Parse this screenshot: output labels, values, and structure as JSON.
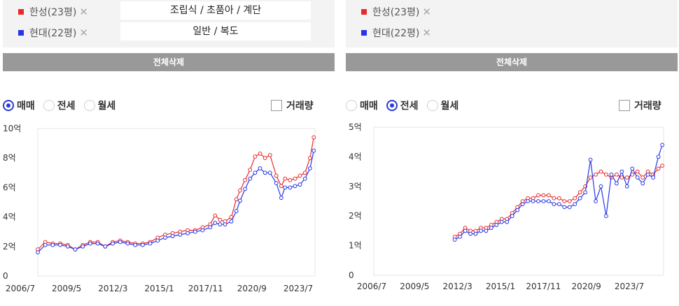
{
  "colors": {
    "hansung": "#e8292a",
    "hyundai": "#2636e6",
    "button": "#999999",
    "accent": "#2a3ad8"
  },
  "left": {
    "legend": [
      {
        "name": "한성(23평)",
        "color": "#e8292a",
        "desc": "조립식 / 초품아 / 계단"
      },
      {
        "name": "현대(22평)",
        "color": "#2636e6",
        "desc": "일반 / 복도"
      }
    ],
    "delete_all": "전체삭제",
    "radios": [
      {
        "label": "매매",
        "checked": true
      },
      {
        "label": "전세",
        "checked": false
      },
      {
        "label": "월세",
        "checked": false
      }
    ],
    "volume_label": "거래량",
    "volume_checked": false
  },
  "right": {
    "legend": [
      {
        "name": "한성(23평)",
        "color": "#e8292a"
      },
      {
        "name": "현대(22평)",
        "color": "#2636e6"
      }
    ],
    "delete_all": "전체삭제",
    "radios": [
      {
        "label": "매매",
        "checked": false
      },
      {
        "label": "전세",
        "checked": true
      },
      {
        "label": "월세",
        "checked": false
      }
    ],
    "volume_label": "거래량",
    "volume_checked": false
  },
  "chart_data": [
    {
      "type": "line",
      "title": "매매",
      "unit": "억",
      "ylim": [
        0,
        10
      ],
      "yticks": [
        "0",
        "2억",
        "4억",
        "6억",
        "8억",
        "10억"
      ],
      "xticks": [
        "2006/7",
        "2009/5",
        "2012/3",
        "2015/1",
        "2017/11",
        "2020/9",
        "2023/7"
      ],
      "xlim": [
        "2006-07",
        "2025-01"
      ],
      "grid": false,
      "series": [
        {
          "name": "한성(23평)",
          "color": "#e8292a",
          "points": [
            [
              "2006-07",
              1.8
            ],
            [
              "2007-01",
              2.3
            ],
            [
              "2007-07",
              2.2
            ],
            [
              "2008-01",
              2.2
            ],
            [
              "2008-07",
              2.1
            ],
            [
              "2009-01",
              1.8
            ],
            [
              "2009-07",
              2.1
            ],
            [
              "2010-01",
              2.3
            ],
            [
              "2010-07",
              2.3
            ],
            [
              "2011-01",
              2.0
            ],
            [
              "2011-07",
              2.3
            ],
            [
              "2012-01",
              2.4
            ],
            [
              "2012-07",
              2.3
            ],
            [
              "2013-01",
              2.2
            ],
            [
              "2013-07",
              2.2
            ],
            [
              "2014-01",
              2.3
            ],
            [
              "2014-07",
              2.6
            ],
            [
              "2015-01",
              2.8
            ],
            [
              "2015-07",
              2.9
            ],
            [
              "2016-01",
              3.0
            ],
            [
              "2016-07",
              3.1
            ],
            [
              "2017-01",
              3.1
            ],
            [
              "2017-07",
              3.3
            ],
            [
              "2018-01",
              3.5
            ],
            [
              "2018-05",
              4.1
            ],
            [
              "2018-09",
              3.8
            ],
            [
              "2019-01",
              3.7
            ],
            [
              "2019-06",
              4.0
            ],
            [
              "2019-10",
              5.2
            ],
            [
              "2020-01",
              5.8
            ],
            [
              "2020-05",
              6.5
            ],
            [
              "2020-09",
              7.2
            ],
            [
              "2021-01",
              8.1
            ],
            [
              "2021-05",
              8.3
            ],
            [
              "2021-09",
              8.0
            ],
            [
              "2022-01",
              8.2
            ],
            [
              "2022-06",
              6.8
            ],
            [
              "2022-10",
              6.1
            ],
            [
              "2023-01",
              6.6
            ],
            [
              "2023-05",
              6.5
            ],
            [
              "2023-09",
              6.6
            ],
            [
              "2024-01",
              6.8
            ],
            [
              "2024-05",
              7.0
            ],
            [
              "2024-09",
              8.0
            ],
            [
              "2024-12",
              9.4
            ]
          ]
        },
        {
          "name": "현대(22평)",
          "color": "#2636e6",
          "points": [
            [
              "2006-07",
              1.6
            ],
            [
              "2007-01",
              2.1
            ],
            [
              "2007-07",
              2.1
            ],
            [
              "2008-01",
              2.1
            ],
            [
              "2008-07",
              2.0
            ],
            [
              "2009-01",
              1.8
            ],
            [
              "2009-07",
              2.0
            ],
            [
              "2010-01",
              2.2
            ],
            [
              "2010-07",
              2.2
            ],
            [
              "2011-01",
              2.0
            ],
            [
              "2011-07",
              2.2
            ],
            [
              "2012-01",
              2.3
            ],
            [
              "2012-07",
              2.2
            ],
            [
              "2013-01",
              2.1
            ],
            [
              "2013-07",
              2.1
            ],
            [
              "2014-01",
              2.2
            ],
            [
              "2014-07",
              2.4
            ],
            [
              "2015-01",
              2.6
            ],
            [
              "2015-07",
              2.7
            ],
            [
              "2016-01",
              2.8
            ],
            [
              "2016-07",
              2.9
            ],
            [
              "2017-01",
              3.0
            ],
            [
              "2017-07",
              3.1
            ],
            [
              "2018-01",
              3.3
            ],
            [
              "2018-05",
              3.6
            ],
            [
              "2018-09",
              3.5
            ],
            [
              "2019-01",
              3.5
            ],
            [
              "2019-06",
              3.7
            ],
            [
              "2019-10",
              4.4
            ],
            [
              "2020-01",
              5.1
            ],
            [
              "2020-05",
              5.9
            ],
            [
              "2020-09",
              6.6
            ],
            [
              "2021-01",
              7.0
            ],
            [
              "2021-05",
              7.3
            ],
            [
              "2021-09",
              7.0
            ],
            [
              "2022-01",
              7.0
            ],
            [
              "2022-06",
              6.3
            ],
            [
              "2022-10",
              5.3
            ],
            [
              "2023-01",
              6.0
            ],
            [
              "2023-05",
              6.0
            ],
            [
              "2023-09",
              6.1
            ],
            [
              "2024-01",
              6.2
            ],
            [
              "2024-05",
              6.6
            ],
            [
              "2024-09",
              7.3
            ],
            [
              "2024-12",
              8.5
            ]
          ]
        }
      ]
    },
    {
      "type": "line",
      "title": "전세",
      "unit": "억",
      "ylim": [
        0,
        5
      ],
      "yticks": [
        "0",
        "1억",
        "2억",
        "3억",
        "4억",
        "5억"
      ],
      "xticks": [
        "2006/7",
        "2009/5",
        "2012/3",
        "2015/1",
        "2017/11",
        "2020/9",
        "2023/7"
      ],
      "xlim": [
        "2006-07",
        "2025-01"
      ],
      "grid": false,
      "series": [
        {
          "name": "한성(23평)",
          "color": "#e8292a",
          "points": [
            [
              "2011-09",
              1.3
            ],
            [
              "2012-01",
              1.4
            ],
            [
              "2012-05",
              1.6
            ],
            [
              "2012-09",
              1.5
            ],
            [
              "2013-01",
              1.5
            ],
            [
              "2013-05",
              1.6
            ],
            [
              "2013-09",
              1.6
            ],
            [
              "2014-01",
              1.7
            ],
            [
              "2014-05",
              1.8
            ],
            [
              "2014-09",
              1.9
            ],
            [
              "2015-01",
              1.9
            ],
            [
              "2015-05",
              2.1
            ],
            [
              "2015-09",
              2.3
            ],
            [
              "2016-01",
              2.5
            ],
            [
              "2016-05",
              2.6
            ],
            [
              "2016-09",
              2.6
            ],
            [
              "2017-01",
              2.7
            ],
            [
              "2017-05",
              2.7
            ],
            [
              "2017-09",
              2.7
            ],
            [
              "2018-01",
              2.6
            ],
            [
              "2018-05",
              2.6
            ],
            [
              "2018-09",
              2.5
            ],
            [
              "2019-01",
              2.5
            ],
            [
              "2019-05",
              2.6
            ],
            [
              "2019-09",
              2.8
            ],
            [
              "2020-01",
              3.0
            ],
            [
              "2020-05",
              3.3
            ],
            [
              "2020-09",
              3.4
            ],
            [
              "2021-01",
              3.5
            ],
            [
              "2021-05",
              3.4
            ],
            [
              "2021-09",
              3.3
            ],
            [
              "2022-01",
              3.4
            ],
            [
              "2022-05",
              3.3
            ],
            [
              "2022-09",
              3.3
            ],
            [
              "2023-01",
              3.4
            ],
            [
              "2023-05",
              3.5
            ],
            [
              "2023-09",
              3.3
            ],
            [
              "2024-01",
              3.5
            ],
            [
              "2024-05",
              3.4
            ],
            [
              "2024-09",
              3.6
            ],
            [
              "2024-12",
              3.7
            ]
          ]
        },
        {
          "name": "현대(22평)",
          "color": "#2636e6",
          "points": [
            [
              "2011-09",
              1.2
            ],
            [
              "2012-01",
              1.3
            ],
            [
              "2012-05",
              1.5
            ],
            [
              "2012-09",
              1.4
            ],
            [
              "2013-01",
              1.4
            ],
            [
              "2013-05",
              1.5
            ],
            [
              "2013-09",
              1.5
            ],
            [
              "2014-01",
              1.6
            ],
            [
              "2014-05",
              1.7
            ],
            [
              "2014-09",
              1.8
            ],
            [
              "2015-01",
              1.8
            ],
            [
              "2015-05",
              2.0
            ],
            [
              "2015-09",
              2.2
            ],
            [
              "2016-01",
              2.4
            ],
            [
              "2016-05",
              2.5
            ],
            [
              "2016-09",
              2.5
            ],
            [
              "2017-01",
              2.5
            ],
            [
              "2017-05",
              2.5
            ],
            [
              "2017-09",
              2.5
            ],
            [
              "2018-01",
              2.4
            ],
            [
              "2018-05",
              2.4
            ],
            [
              "2018-09",
              2.3
            ],
            [
              "2019-01",
              2.3
            ],
            [
              "2019-05",
              2.4
            ],
            [
              "2019-09",
              2.6
            ],
            [
              "2020-01",
              2.8
            ],
            [
              "2020-05",
              3.9
            ],
            [
              "2020-09",
              2.5
            ],
            [
              "2021-01",
              3.0
            ],
            [
              "2021-05",
              2.0
            ],
            [
              "2021-09",
              3.4
            ],
            [
              "2022-01",
              3.1
            ],
            [
              "2022-05",
              3.5
            ],
            [
              "2022-09",
              3.0
            ],
            [
              "2023-01",
              3.6
            ],
            [
              "2023-05",
              3.3
            ],
            [
              "2023-09",
              3.1
            ],
            [
              "2024-01",
              3.4
            ],
            [
              "2024-05",
              3.3
            ],
            [
              "2024-09",
              4.0
            ],
            [
              "2024-12",
              4.4
            ]
          ]
        }
      ]
    }
  ]
}
